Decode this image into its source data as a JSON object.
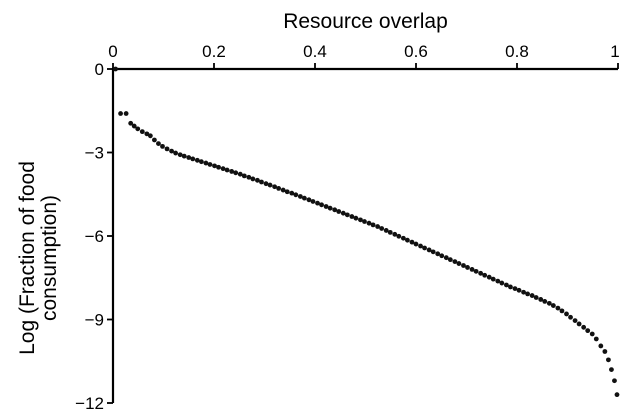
{
  "chart_data": {
    "type": "scatter",
    "title": "",
    "xlabel": "Resource overlap",
    "ylabel": "Log (Fraction of food consumption)",
    "xlim": [
      0,
      1
    ],
    "ylim": [
      -12,
      0
    ],
    "x_ticks": [
      0,
      0.2,
      0.4,
      0.6,
      0.8,
      1
    ],
    "x_tick_labels": [
      "0",
      "0.2",
      "0.4",
      "0.6",
      "0.8",
      "1"
    ],
    "y_ticks": [
      0,
      -3,
      -6,
      -9,
      -12
    ],
    "y_tick_labels": [
      "0",
      "−3",
      "−6",
      "−9",
      "−12"
    ],
    "x_axis_position": "top",
    "grid": false,
    "legend": "none",
    "marker_color": "#111111",
    "series": [
      {
        "x": [
          0.005,
          0.015,
          0.026,
          0.035,
          0.042,
          0.049,
          0.058,
          0.067,
          0.074,
          0.082,
          0.09,
          0.098,
          0.107,
          0.116,
          0.124,
          0.133,
          0.141,
          0.15,
          0.158,
          0.167,
          0.175,
          0.184,
          0.192,
          0.201,
          0.209,
          0.218,
          0.226,
          0.235,
          0.243,
          0.252,
          0.26,
          0.269,
          0.277,
          0.286,
          0.294,
          0.303,
          0.311,
          0.32,
          0.328,
          0.337,
          0.345,
          0.354,
          0.362,
          0.371,
          0.379,
          0.388,
          0.396,
          0.405,
          0.413,
          0.422,
          0.43,
          0.439,
          0.447,
          0.456,
          0.464,
          0.473,
          0.481,
          0.49,
          0.498,
          0.507,
          0.515,
          0.524,
          0.532,
          0.541,
          0.549,
          0.558,
          0.566,
          0.575,
          0.583,
          0.592,
          0.6,
          0.609,
          0.617,
          0.626,
          0.634,
          0.643,
          0.651,
          0.66,
          0.668,
          0.677,
          0.685,
          0.694,
          0.702,
          0.711,
          0.719,
          0.728,
          0.736,
          0.745,
          0.753,
          0.762,
          0.77,
          0.779,
          0.787,
          0.796,
          0.804,
          0.813,
          0.821,
          0.83,
          0.838,
          0.847,
          0.855,
          0.864,
          0.872,
          0.881,
          0.889,
          0.898,
          0.906,
          0.915,
          0.923,
          0.932,
          0.94,
          0.949,
          0.957,
          0.966,
          0.974,
          0.981,
          0.987,
          0.993,
          0.998
        ],
        "y": [
          0.0,
          -1.6,
          -1.6,
          -1.95,
          -2.05,
          -2.15,
          -2.25,
          -2.33,
          -2.4,
          -2.55,
          -2.68,
          -2.78,
          -2.87,
          -2.95,
          -3.02,
          -3.08,
          -3.13,
          -3.18,
          -3.23,
          -3.28,
          -3.33,
          -3.38,
          -3.43,
          -3.48,
          -3.53,
          -3.58,
          -3.63,
          -3.68,
          -3.73,
          -3.78,
          -3.84,
          -3.89,
          -3.95,
          -4.0,
          -4.06,
          -4.12,
          -4.17,
          -4.23,
          -4.29,
          -4.35,
          -4.41,
          -4.46,
          -4.52,
          -4.58,
          -4.64,
          -4.7,
          -4.76,
          -4.82,
          -4.88,
          -4.94,
          -5.0,
          -5.06,
          -5.12,
          -5.18,
          -5.24,
          -5.3,
          -5.36,
          -5.42,
          -5.48,
          -5.54,
          -5.6,
          -5.66,
          -5.73,
          -5.8,
          -5.87,
          -5.94,
          -6.01,
          -6.08,
          -6.15,
          -6.22,
          -6.29,
          -6.36,
          -6.43,
          -6.5,
          -6.57,
          -6.64,
          -6.71,
          -6.78,
          -6.85,
          -6.92,
          -6.99,
          -7.06,
          -7.13,
          -7.2,
          -7.27,
          -7.34,
          -7.41,
          -7.48,
          -7.55,
          -7.62,
          -7.69,
          -7.76,
          -7.83,
          -7.89,
          -7.95,
          -8.02,
          -8.08,
          -8.14,
          -8.21,
          -8.28,
          -8.35,
          -8.42,
          -8.5,
          -8.59,
          -8.69,
          -8.8,
          -8.92,
          -9.04,
          -9.16,
          -9.28,
          -9.4,
          -9.52,
          -9.7,
          -9.95,
          -10.15,
          -10.45,
          -10.8,
          -11.2,
          -11.7
        ]
      }
    ]
  }
}
